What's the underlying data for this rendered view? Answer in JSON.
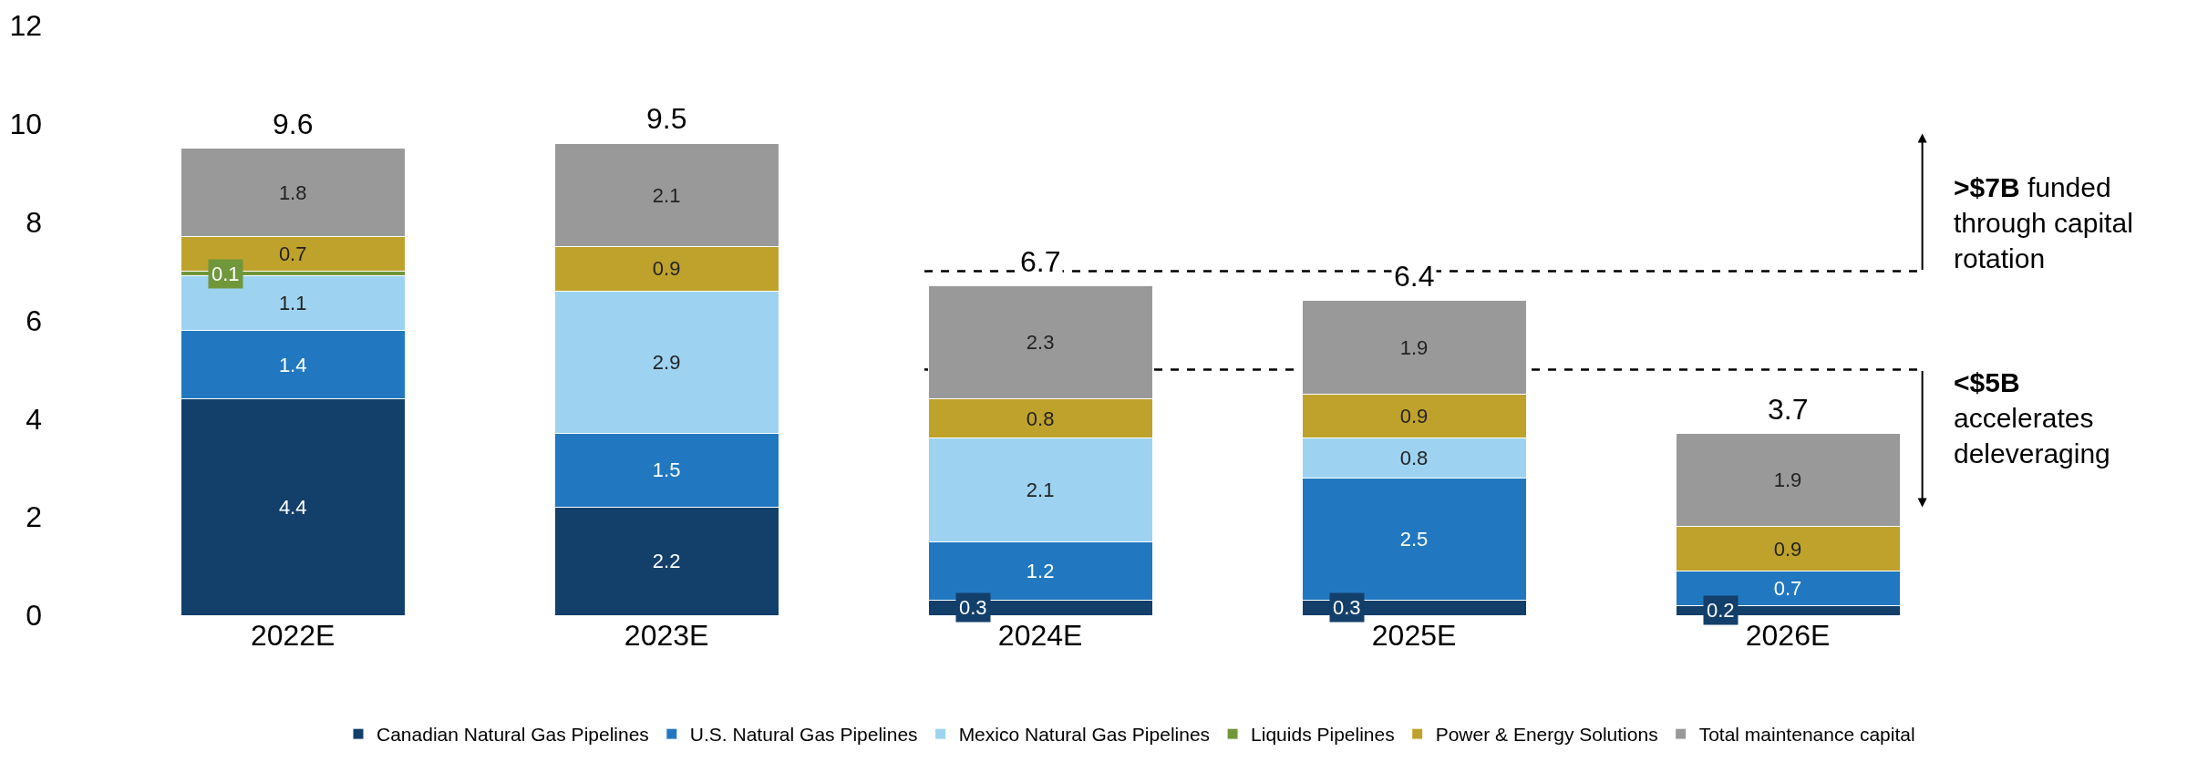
{
  "chart_data": {
    "type": "bar",
    "stacked": true,
    "data_labels": true,
    "categories": [
      "2022E",
      "2023E",
      "2024E",
      "2025E",
      "2026E"
    ],
    "series": [
      {
        "name": "Canadian Natural Gas Pipelines",
        "color": "#133f6b",
        "values": [
          4.4,
          2.2,
          0.3,
          0.3,
          0.2
        ]
      },
      {
        "name": "U.S. Natural Gas Pipelines",
        "color": "#2178c0",
        "values": [
          1.4,
          1.5,
          1.2,
          2.5,
          0.7
        ]
      },
      {
        "name": "Mexico Natural Gas Pipelines",
        "color": "#9dd3f0",
        "values": [
          1.1,
          2.9,
          2.1,
          0.8,
          null
        ]
      },
      {
        "name": "Liquids Pipelines",
        "color": "#70973a",
        "values": [
          0.1,
          null,
          null,
          null,
          null
        ]
      },
      {
        "name": "Power & Energy Solutions",
        "color": "#bfa22c",
        "values": [
          0.7,
          0.9,
          0.8,
          0.9,
          0.9
        ]
      },
      {
        "name": "Total maintenance capital",
        "color": "#999999",
        "values": [
          1.8,
          2.1,
          2.3,
          1.9,
          1.9
        ]
      }
    ],
    "totals": [
      "9.6",
      "9.5",
      "6.7",
      "6.4",
      "3.7"
    ],
    "ylim": [
      0,
      12
    ],
    "yticks": [
      0,
      2,
      4,
      6,
      8,
      10,
      12
    ],
    "ref_lines": [
      {
        "axis": "y",
        "value": 7,
        "label": ">$7B funded through capital rotation",
        "line_style": "dashed",
        "color": "#000000"
      },
      {
        "axis": "y",
        "value": 5,
        "label": "<$5B accelerates deleveraging",
        "line_style": "dashed",
        "color": "#000000"
      }
    ],
    "legend": "bottom"
  }
}
